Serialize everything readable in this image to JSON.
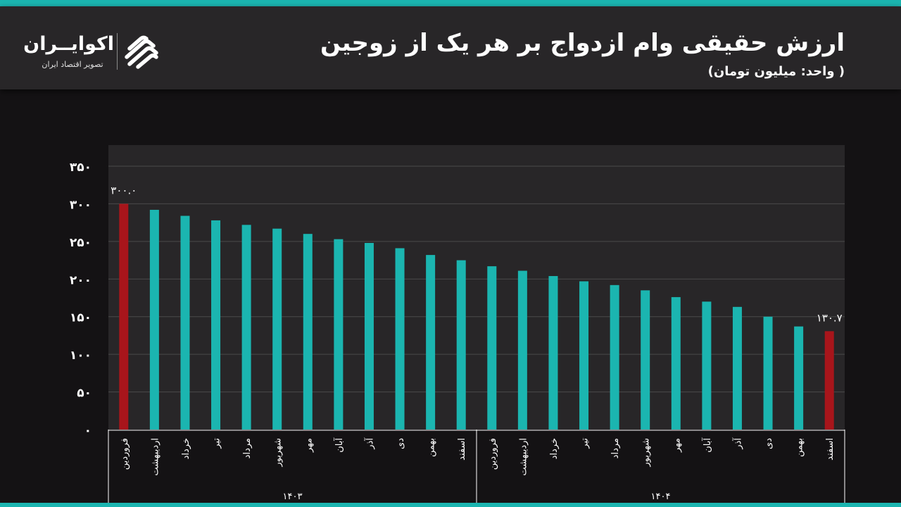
{
  "header": {
    "title": "ارزش حقیقی وام ازدواج بر هر یک از زوجین",
    "subtitle": "( واحد: میلیون تومان)",
    "logo_name": "اکوایــران",
    "logo_tagline": "تصویر اقتصاد ایران",
    "logo_icon": "ecoiran-logo-icon"
  },
  "colors": {
    "background": "#141214",
    "header_bg": "#282628",
    "plot_bg": "#282628",
    "accent": "#1bb5b0",
    "highlight": "#a8151b",
    "grid": "#4a4a4a"
  },
  "chart_data": {
    "type": "bar",
    "title": "ارزش حقیقی وام ازدواج بر هر یک از زوجین",
    "xlabel": "",
    "ylabel": "",
    "ylim": [
      0,
      350
    ],
    "yticks": [
      "۰",
      "۵۰",
      "۱۰۰",
      "۱۵۰",
      "۲۰۰",
      "۲۵۰",
      "۳۰۰",
      "۳۵۰"
    ],
    "grid": true,
    "legend": "none",
    "categories": [
      "فروردین",
      "اردیبهشت",
      "خرداد",
      "تیر",
      "مرداد",
      "شهریور",
      "مهر",
      "آبان",
      "آذر",
      "دی",
      "بهمن",
      "اسفند",
      "فروردین",
      "اردیبهشت",
      "خرداد",
      "تیر",
      "مرداد",
      "شهریور",
      "مهر",
      "آبان",
      "آذر",
      "دی",
      "بهمن",
      "اسفند"
    ],
    "groups": [
      {
        "label": "۱۴۰۳",
        "count": 12
      },
      {
        "label": "۱۴۰۴",
        "count": 12
      }
    ],
    "values": [
      300.0,
      292,
      284,
      278,
      272,
      267,
      260,
      253,
      248,
      241,
      232,
      225,
      217,
      211,
      204,
      197,
      192,
      185,
      176,
      170,
      163,
      150,
      137,
      130.7
    ],
    "highlighted": [
      0,
      23
    ],
    "data_labels": {
      "0": "۳۰۰.۰",
      "23": "۱۳۰.۷"
    }
  }
}
